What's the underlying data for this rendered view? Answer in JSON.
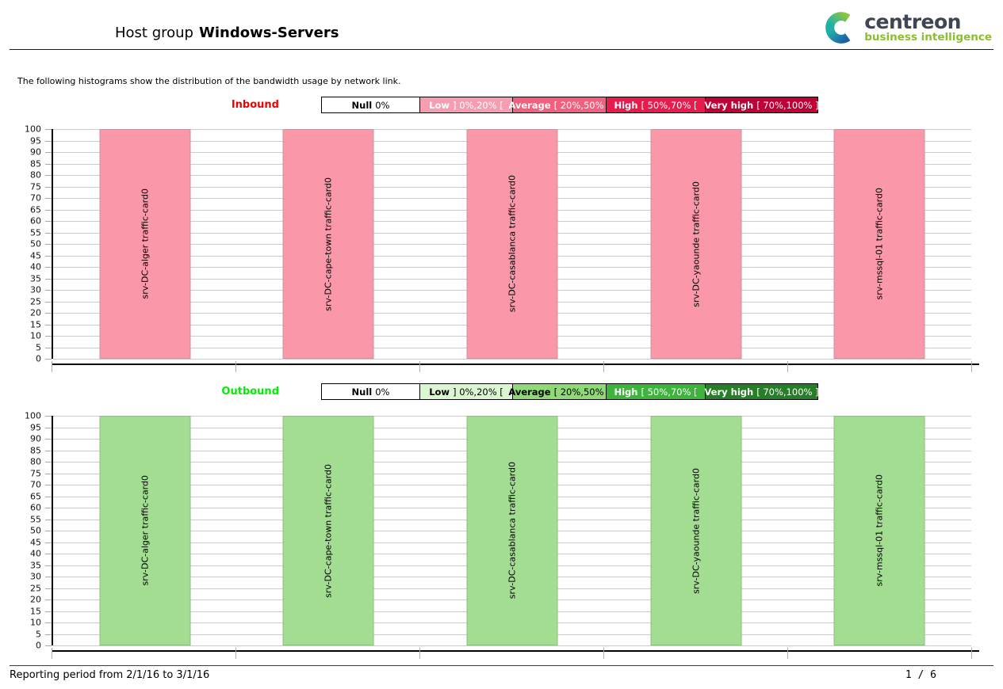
{
  "header": {
    "title_prefix": "Host group",
    "title_name": "Windows-Servers",
    "logo": {
      "brand": "centreon",
      "tagline": "business intelligence"
    }
  },
  "intro_text": "The following histograms show the distribution of the bandwidth usage by network link.",
  "chart_data": [
    {
      "type": "bar",
      "direction_label": "Inbound",
      "direction_color": "#f20000",
      "legend_position": "top",
      "legend": [
        {
          "label": "Null",
          "range": "0%",
          "bg": "#ffffff",
          "fg": "#000000"
        },
        {
          "label": "Low",
          "range": "] 0%,20% [",
          "bg": "#f79db1",
          "fg": "#ffffff"
        },
        {
          "label": "Average",
          "range": "[ 20%,50% [",
          "bg": "#f2607f",
          "fg": "#ffffff"
        },
        {
          "label": "High",
          "range": "[ 50%,70% [",
          "bg": "#e71c4d",
          "fg": "#ffffff"
        },
        {
          "label": "Very high",
          "range": "[ 70%,100% ]",
          "bg": "#bf0235",
          "fg": "#ffffff"
        }
      ],
      "categories": [
        "srv-DC-alger traffic-card0",
        "srv-DC-cape-town traffic-card0",
        "srv-DC-casablanca traffic-card0",
        "srv-DC-yaounde traffic-card0",
        "srv-mssql-01 traffic-card0"
      ],
      "values": [
        100,
        100,
        100,
        100,
        100
      ],
      "ylabel": "",
      "xlabel": "",
      "ylim": [
        0,
        100
      ],
      "ytick_step": 5,
      "grid": true,
      "bar_color": "#fa97a9",
      "bar_border": "#c9939e"
    },
    {
      "type": "bar",
      "direction_label": "Outbound",
      "direction_color": "#00ef00",
      "legend_position": "top",
      "legend": [
        {
          "label": "Null",
          "range": "0%",
          "bg": "#ffffff",
          "fg": "#000000"
        },
        {
          "label": "Low",
          "range": "] 0%,20% [",
          "bg": "#daf7d2",
          "fg": "#000000"
        },
        {
          "label": "Average",
          "range": "[ 20%,50% [",
          "bg": "#8fd977",
          "fg": "#000000"
        },
        {
          "label": "High",
          "range": "[ 50%,70% [",
          "bg": "#3db53d",
          "fg": "#ffffff"
        },
        {
          "label": "Very high",
          "range": "[ 70%,100% ]",
          "bg": "#287d28",
          "fg": "#ffffff"
        }
      ],
      "categories": [
        "srv-DC-alger traffic-card0",
        "srv-DC-cape-town traffic-card0",
        "srv-DC-casablanca traffic-card0",
        "srv-DC-yaounde traffic-card0",
        "srv-mssql-01 traffic-card0"
      ],
      "values": [
        100,
        100,
        100,
        100,
        100
      ],
      "ylabel": "",
      "xlabel": "",
      "ylim": [
        0,
        100
      ],
      "ytick_step": 5,
      "grid": true,
      "bar_color": "#a3dd92",
      "bar_border": "#8dbd81"
    }
  ],
  "footer": {
    "reporting_period": "Reporting period from 2/1/16 to 3/1/16",
    "page_indicator": "1 / 6"
  }
}
